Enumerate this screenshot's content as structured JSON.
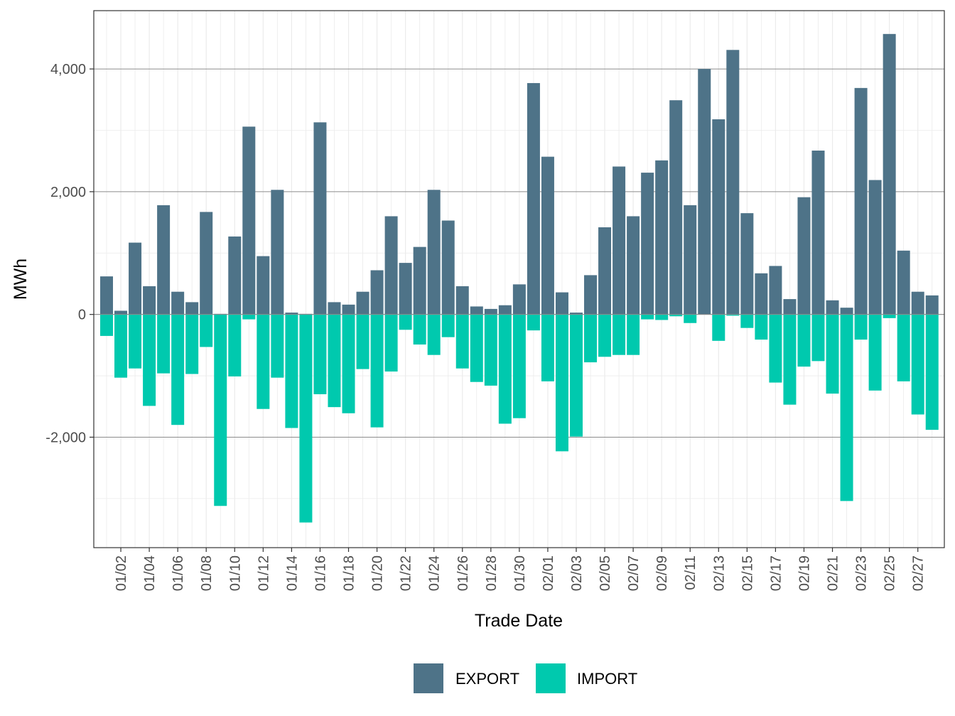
{
  "chart_data": {
    "type": "bar",
    "xlabel": "Trade Date",
    "ylabel": "MWh",
    "ylim": [
      -3800,
      4950
    ],
    "y_ticks": [
      -2000,
      0,
      2000,
      4000
    ],
    "y_tick_labels": [
      "-2,000",
      "0",
      "2,000",
      "4,000"
    ],
    "y_minor_ticks": [
      -3000,
      -1000,
      1000,
      3000
    ],
    "grid": true,
    "legend_position": "bottom",
    "x_tick_labels": [
      "01/02",
      "01/04",
      "01/06",
      "01/08",
      "01/10",
      "01/12",
      "01/14",
      "01/16",
      "01/18",
      "01/20",
      "01/22",
      "01/24",
      "01/26",
      "01/28",
      "01/30",
      "02/01",
      "02/03",
      "02/05",
      "02/07",
      "02/09",
      "02/11",
      "02/13",
      "02/15",
      "02/17",
      "02/19",
      "02/21",
      "02/23",
      "02/25",
      "02/27"
    ],
    "categories": [
      "01/01",
      "01/02",
      "01/03",
      "01/04",
      "01/05",
      "01/06",
      "01/07",
      "01/08",
      "01/09",
      "01/10",
      "01/11",
      "01/12",
      "01/13",
      "01/14",
      "01/15",
      "01/16",
      "01/17",
      "01/18",
      "01/19",
      "01/20",
      "01/21",
      "01/22",
      "01/23",
      "01/24",
      "01/25",
      "01/26",
      "01/27",
      "01/28",
      "01/29",
      "01/30",
      "01/31",
      "02/01",
      "02/02",
      "02/03",
      "02/04",
      "02/05",
      "02/06",
      "02/07",
      "02/08",
      "02/09",
      "02/10",
      "02/11",
      "02/12",
      "02/13",
      "02/14",
      "02/15",
      "02/16",
      "02/17",
      "02/18",
      "02/19",
      "02/20",
      "02/21",
      "02/22",
      "02/23",
      "02/24",
      "02/25",
      "02/26",
      "02/27",
      "02/28"
    ],
    "series": [
      {
        "name": "EXPORT",
        "color": "#4e7388",
        "values": [
          620,
          60,
          1170,
          460,
          1780,
          370,
          200,
          1670,
          10,
          1270,
          3060,
          950,
          2030,
          30,
          10,
          3130,
          200,
          160,
          370,
          720,
          1600,
          840,
          1100,
          2030,
          1530,
          460,
          130,
          90,
          150,
          490,
          3770,
          2570,
          360,
          30,
          640,
          1420,
          2410,
          1600,
          2310,
          2510,
          3490,
          1780,
          4000,
          3180,
          4310,
          1650,
          670,
          790,
          250,
          1910,
          2670,
          230,
          110,
          3690,
          2190,
          4570,
          1040,
          370,
          310
        ]
      },
      {
        "name": "IMPORT",
        "color": "#00c9ae",
        "values": [
          -350,
          -1030,
          -880,
          -1490,
          -960,
          -1800,
          -970,
          -530,
          -3120,
          -1010,
          -80,
          -1540,
          -1030,
          -1850,
          -3390,
          -1300,
          -1510,
          -1610,
          -890,
          -1840,
          -930,
          -250,
          -490,
          -660,
          -370,
          -880,
          -1100,
          -1160,
          -1780,
          -1690,
          -260,
          -1090,
          -2230,
          -1990,
          -780,
          -690,
          -660,
          -660,
          -80,
          -90,
          -30,
          -140,
          0,
          -430,
          -20,
          -220,
          -410,
          -1110,
          -1470,
          -850,
          -760,
          -1290,
          -3040,
          -410,
          -1240,
          -60,
          -1090,
          -1630,
          -1880
        ]
      }
    ]
  }
}
